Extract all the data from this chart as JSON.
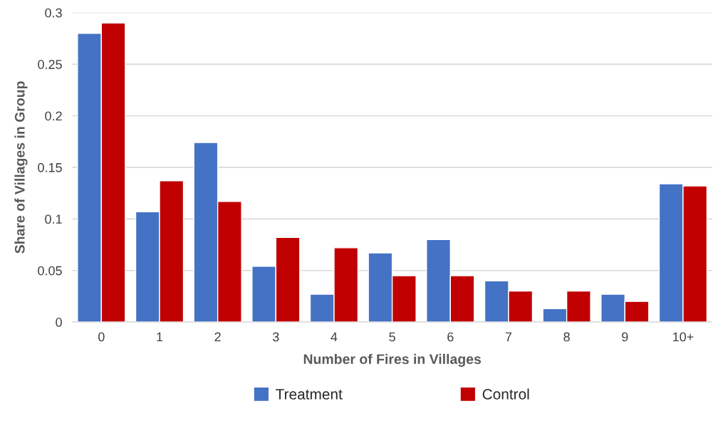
{
  "chart_data": {
    "type": "bar",
    "xlabel": "Number of Fires in Villages",
    "ylabel": "Share of Villages in Group",
    "categories": [
      "0",
      "1",
      "2",
      "3",
      "4",
      "5",
      "6",
      "7",
      "8",
      "9",
      "10+"
    ],
    "series": [
      {
        "name": "Treatment",
        "color": "#4472c4",
        "values": [
          0.28,
          0.107,
          0.174,
          0.054,
          0.027,
          0.067,
          0.08,
          0.04,
          0.013,
          0.027,
          0.134
        ]
      },
      {
        "name": "Control",
        "color": "#c00000",
        "values": [
          0.29,
          0.137,
          0.117,
          0.082,
          0.072,
          0.045,
          0.045,
          0.03,
          0.03,
          0.02,
          0.132
        ]
      }
    ],
    "ylim": [
      0,
      0.3
    ],
    "yticks": [
      0,
      0.05,
      0.1,
      0.15,
      0.2,
      0.25,
      0.3
    ],
    "grid": "y",
    "legend": "bottom"
  }
}
